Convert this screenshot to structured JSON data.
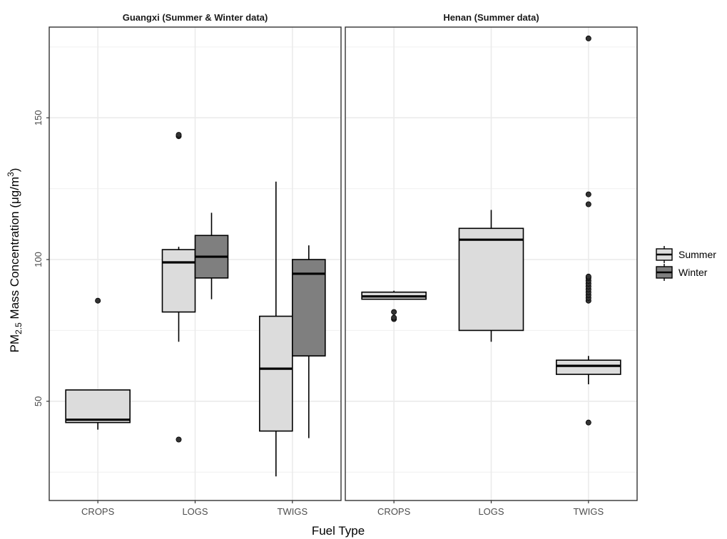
{
  "chart_data": {
    "type": "boxplot",
    "xlabel": "Fuel Type",
    "ylabel": {
      "main": "PM",
      "sub": "2.5",
      "rest": " Mass Concentration (μg/m",
      "sup": "3",
      "end": ")"
    },
    "ylim": [
      15,
      182
    ],
    "yticks": [
      50,
      100,
      150
    ],
    "categories": [
      "CROPS",
      "LOGS",
      "TWIGS"
    ],
    "grid": true,
    "legend": {
      "position": "right",
      "entries": [
        {
          "name": "Summer",
          "color": "#dcdcdc"
        },
        {
          "name": "Winter",
          "color": "#7f7f7f"
        }
      ]
    },
    "panels": [
      {
        "title": "Guangxi (Summer & Winter data)",
        "boxes": [
          {
            "category": "CROPS",
            "series": "Summer",
            "whisker_low": 40,
            "q1": 42.5,
            "median": 43.5,
            "q3": 54,
            "whisker_high": 54,
            "outliers": [
              85.5
            ]
          },
          {
            "category": "LOGS",
            "series": "Summer",
            "whisker_low": 71,
            "q1": 81.5,
            "median": 99,
            "q3": 103.5,
            "whisker_high": 104.5,
            "outliers": [
              36.5,
              143.5,
              144
            ]
          },
          {
            "category": "LOGS",
            "series": "Winter",
            "whisker_low": 86,
            "q1": 93.5,
            "median": 101,
            "q3": 108.5,
            "whisker_high": 116.5,
            "outliers": []
          },
          {
            "category": "TWIGS",
            "series": "Summer",
            "whisker_low": 23.5,
            "q1": 39.5,
            "median": 61.5,
            "q3": 80,
            "whisker_high": 127.5,
            "outliers": []
          },
          {
            "category": "TWIGS",
            "series": "Winter",
            "whisker_low": 37,
            "q1": 66,
            "median": 95,
            "q3": 100,
            "whisker_high": 105,
            "outliers": []
          }
        ]
      },
      {
        "title": "Henan (Summer data)",
        "boxes": [
          {
            "category": "CROPS",
            "series": "Summer",
            "whisker_low": 86,
            "q1": 86,
            "median": 87,
            "q3": 88.5,
            "whisker_high": 89,
            "outliers": [
              79,
              79.5,
              81.5
            ]
          },
          {
            "category": "LOGS",
            "series": "Summer",
            "whisker_low": 71,
            "q1": 75,
            "median": 107,
            "q3": 111,
            "whisker_high": 117.5,
            "outliers": []
          },
          {
            "category": "TWIGS",
            "series": "Summer",
            "whisker_low": 56,
            "q1": 59.5,
            "median": 62.5,
            "q3": 64.5,
            "whisker_high": 66,
            "outliers": [
              42.5,
              85.5,
              86.5,
              87.5,
              88.5,
              89.5,
              90.5,
              91.5,
              92.5,
              93.5,
              94,
              119.5,
              123,
              178
            ]
          }
        ]
      }
    ]
  }
}
